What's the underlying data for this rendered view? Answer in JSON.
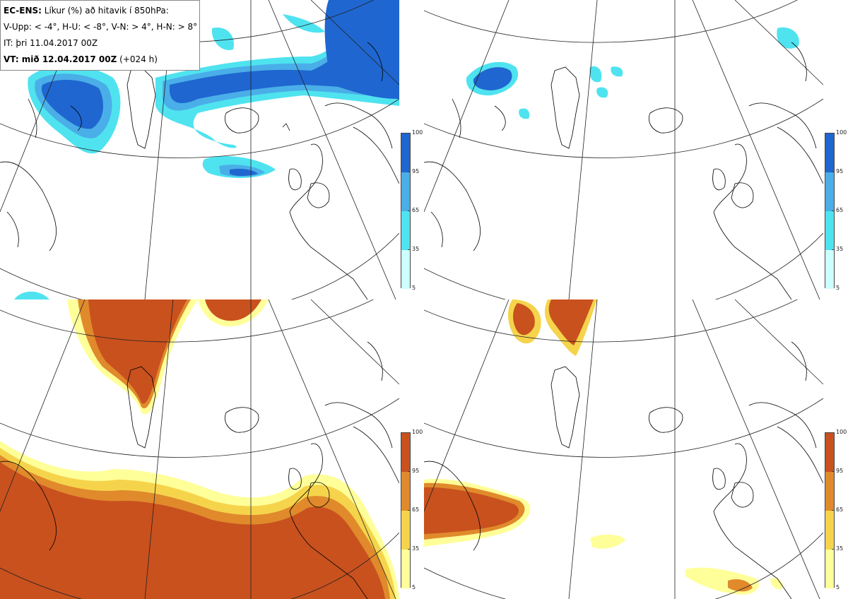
{
  "title_box": {
    "line1_bold": "EC-ENS:",
    "line1_rest": " Líkur (%) að hitavik í 850hPa:",
    "line2": "V-Upp: < -4°, H-U: < -8°, V-N: > 4°, H-N: > 8°",
    "line3": "IT: þri 11.04.2017 00Z",
    "line4_bold": "VT: mið 12.04.2017 00Z",
    "line4_rest": " (+024 h)"
  },
  "legend_ticks": [
    "100",
    "95",
    "65",
    "35",
    "5"
  ],
  "colors": {
    "cold": [
      "#ccffff",
      "#4fe3f0",
      "#4aaee8",
      "#1f66d0"
    ],
    "warm": [
      "#ffff99",
      "#f5d44c",
      "#e08a2c",
      "#c8511e"
    ],
    "coast": "#000000",
    "grid": "#222222"
  },
  "panels": [
    {
      "id": "p1",
      "name": "V-Upp",
      "kind": "cold",
      "threshold": "< -4°"
    },
    {
      "id": "p2",
      "name": "H-U",
      "kind": "cold",
      "threshold": "< -8°"
    },
    {
      "id": "p3",
      "name": "V-N",
      "kind": "warm",
      "threshold": "> 4°"
    },
    {
      "id": "p4",
      "name": "H-N",
      "kind": "warm",
      "threshold": "> 8°"
    }
  ]
}
